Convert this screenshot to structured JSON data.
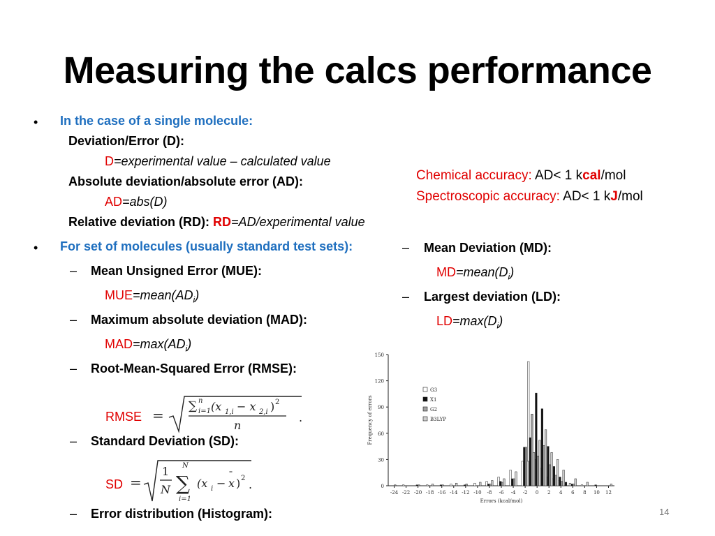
{
  "title": "Measuring the calcs performance",
  "single": {
    "heading": "In the case of a single molecule:",
    "dev_label": "Deviation/Error (D):",
    "d_sym": "D",
    "d_formula": "=experimental value – calculated value",
    "ad_label": "Absolute deviation/absolute error (AD):",
    "ad_sym": "AD",
    "ad_formula": "=abs(D)",
    "rd_label": "Relative deviation (RD): ",
    "rd_sym": "RD",
    "rd_formula": "=AD/experimental value"
  },
  "accuracy": {
    "chem_label": "Chemical accuracy:",
    "chem_pre": " AD< 1 k",
    "chem_unit": "cal",
    "chem_post": "/mol",
    "spec_label": "Spectroscopic accuracy:",
    "spec_pre": " AD< 1 k",
    "spec_unit": "J",
    "spec_post": "/mol"
  },
  "set": {
    "heading": "For set of molecules (usually standard test sets):",
    "dash": "–",
    "mue_label": "Mean Unsigned Error (MUE):",
    "mue_sym": "MUE",
    "mue_formula": "=mean(AD",
    "mue_sub": "i",
    "mue_close": ")",
    "mad_label": "Maximum absolute deviation (MAD):",
    "mad_sym": "MAD",
    "mad_formula": "=max(AD",
    "mad_sub": "i",
    "mad_close": ")",
    "rmse_label": "Root-Mean-Squared Error (RMSE):",
    "rmse_sym": "RMSE",
    "sd_label": "Standard Deviation (SD):",
    "sd_sym": "SD",
    "hist_label": "Error distribution (Histogram):",
    "md_label": "Mean  Deviation (MD):",
    "md_sym": "MD",
    "md_formula": "=mean(D",
    "md_sub": "i",
    "md_close": ")",
    "ld_label": "Largest deviation (LD):",
    "ld_sym": "LD",
    "ld_formula": "=max(D",
    "ld_sub": "i",
    "ld_close": ")"
  },
  "page_number": "14",
  "chart_data": {
    "type": "bar",
    "xlabel": "Errors (kcal/mol)",
    "ylabel": "Frequency of errors",
    "ylim": [
      0,
      150
    ],
    "yticks": [
      "0",
      "30",
      "60",
      "90",
      "120",
      "150"
    ],
    "xticks": [
      "-24",
      "-22",
      "-20",
      "-18",
      "-16",
      "-14",
      "-12",
      "-10",
      "-8",
      "-6",
      "-4",
      "-2",
      "0",
      "2",
      "4",
      "6",
      "8",
      "10",
      "12"
    ],
    "legend_position": "top-left",
    "series": [
      {
        "name": "G3",
        "color": "#ffffff",
        "x": [
          -22,
          -18,
          -14,
          -10,
          -8,
          -6,
          -4,
          -2,
          -1,
          0,
          1,
          2,
          3,
          4,
          6,
          8
        ],
        "values": [
          1,
          1,
          2,
          3,
          5,
          10,
          18,
          28,
          142,
          30,
          20,
          10,
          8,
          6,
          3,
          1
        ]
      },
      {
        "name": "X1",
        "color": "#111111",
        "x": [
          -20,
          -16,
          -12,
          -8,
          -6,
          -4,
          -2,
          -1,
          0,
          1,
          2,
          3,
          4,
          5,
          6,
          10
        ],
        "values": [
          1,
          1,
          1,
          2,
          5,
          8,
          44,
          55,
          106,
          88,
          45,
          22,
          10,
          4,
          2,
          1
        ]
      },
      {
        "name": "G2",
        "color": "#a0a0a0",
        "x": [
          -24,
          -20,
          -16,
          -12,
          -8,
          -6,
          -4,
          -2,
          -1,
          0,
          1,
          2,
          3,
          4,
          6
        ],
        "values": [
          1,
          1,
          1,
          2,
          2,
          4,
          8,
          44,
          82,
          34,
          46,
          24,
          12,
          5,
          2
        ]
      },
      {
        "name": "B3LYP",
        "color": "#d0d0d0",
        "x": [
          -18,
          -14,
          -10,
          -8,
          -6,
          -4,
          -2,
          -1,
          0,
          1,
          2,
          3,
          4,
          6,
          8,
          12
        ],
        "values": [
          2,
          3,
          4,
          6,
          8,
          16,
          28,
          38,
          52,
          64,
          38,
          30,
          18,
          8,
          4,
          2
        ]
      }
    ]
  }
}
